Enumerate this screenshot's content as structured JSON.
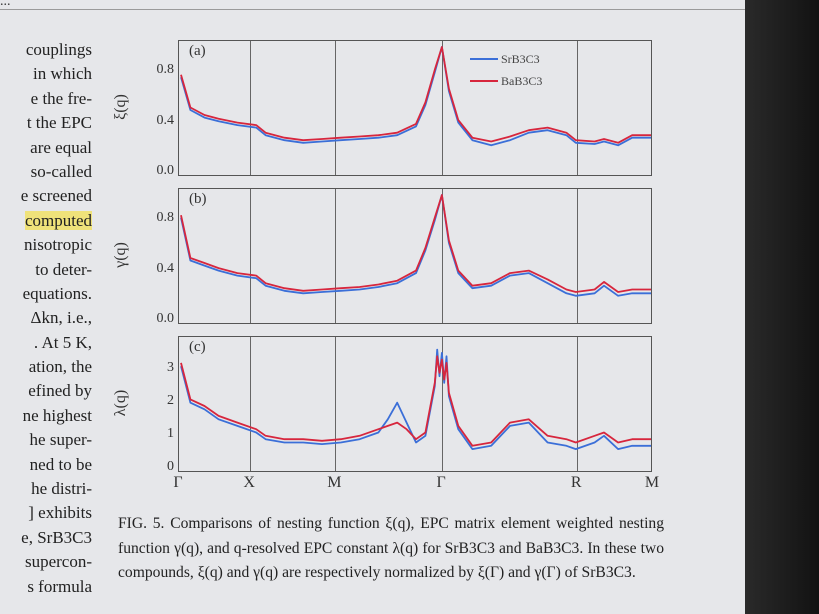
{
  "header": {
    "dots": "..."
  },
  "left_column": [
    "couplings",
    "in which",
    "e the fre-",
    "t the EPC",
    "are equal",
    "so-called",
    "e screened",
    "computed",
    "nisotropic",
    "to deter-",
    "equations.",
    "Δkn, i.e.,",
    ". At 5 K,",
    "ation, the",
    "efined by",
    "ne highest",
    "he super-",
    "ned to be",
    "he distri-",
    "] exhibits",
    "e, SrB3C3",
    "supercon-",
    "s formula"
  ],
  "highlight_index": 7,
  "legend": {
    "series1": "SrB3C3",
    "series2": "BaB3C3",
    "color1": "#3b6fd8",
    "color2": "#d7263d"
  },
  "x_ticks": [
    "Γ",
    "X",
    "M",
    "Γ",
    "R",
    "M"
  ],
  "chart_data": [
    {
      "type": "line",
      "panel_label": "(a)",
      "ylabel": "ξ(q)",
      "yticks": [
        "0.0",
        "0.4",
        "0.8"
      ],
      "ylim": [
        0,
        1.0
      ],
      "x": [
        0.0,
        0.02,
        0.05,
        0.08,
        0.12,
        0.16,
        0.18,
        0.22,
        0.26,
        0.3,
        0.34,
        0.38,
        0.42,
        0.46,
        0.5,
        0.52,
        0.54,
        0.555,
        0.57,
        0.59,
        0.62,
        0.66,
        0.7,
        0.74,
        0.78,
        0.82,
        0.84,
        0.88,
        0.9,
        0.93,
        0.96,
        1.0
      ],
      "series": [
        {
          "name": "SrB3C3",
          "values": [
            0.76,
            0.5,
            0.44,
            0.41,
            0.38,
            0.36,
            0.3,
            0.26,
            0.24,
            0.25,
            0.26,
            0.27,
            0.28,
            0.3,
            0.37,
            0.54,
            0.8,
            1.0,
            0.65,
            0.4,
            0.26,
            0.22,
            0.26,
            0.32,
            0.34,
            0.3,
            0.24,
            0.23,
            0.25,
            0.22,
            0.28,
            0.28
          ]
        },
        {
          "name": "BaB3C3",
          "values": [
            0.78,
            0.52,
            0.46,
            0.43,
            0.4,
            0.38,
            0.32,
            0.28,
            0.26,
            0.27,
            0.28,
            0.29,
            0.3,
            0.32,
            0.39,
            0.56,
            0.82,
            1.0,
            0.67,
            0.42,
            0.28,
            0.25,
            0.29,
            0.34,
            0.36,
            0.32,
            0.26,
            0.25,
            0.27,
            0.24,
            0.3,
            0.3
          ]
        }
      ]
    },
    {
      "type": "line",
      "panel_label": "(b)",
      "ylabel": "γ(q)",
      "yticks": [
        "0.0",
        "0.4",
        "0.8"
      ],
      "ylim": [
        0,
        1.0
      ],
      "x": [
        0.0,
        0.02,
        0.05,
        0.08,
        0.12,
        0.16,
        0.18,
        0.22,
        0.26,
        0.3,
        0.34,
        0.38,
        0.42,
        0.46,
        0.5,
        0.52,
        0.54,
        0.555,
        0.57,
        0.59,
        0.62,
        0.66,
        0.7,
        0.74,
        0.78,
        0.82,
        0.84,
        0.88,
        0.9,
        0.93,
        0.96,
        1.0
      ],
      "series": [
        {
          "name": "SrB3C3",
          "values": [
            0.82,
            0.48,
            0.44,
            0.4,
            0.36,
            0.34,
            0.28,
            0.24,
            0.22,
            0.23,
            0.24,
            0.25,
            0.27,
            0.3,
            0.38,
            0.56,
            0.8,
            1.0,
            0.62,
            0.38,
            0.26,
            0.28,
            0.36,
            0.38,
            0.3,
            0.22,
            0.2,
            0.22,
            0.28,
            0.2,
            0.22,
            0.22
          ]
        },
        {
          "name": "BaB3C3",
          "values": [
            0.84,
            0.5,
            0.46,
            0.42,
            0.38,
            0.36,
            0.3,
            0.26,
            0.24,
            0.25,
            0.26,
            0.27,
            0.29,
            0.32,
            0.4,
            0.58,
            0.82,
            1.0,
            0.64,
            0.4,
            0.28,
            0.3,
            0.38,
            0.4,
            0.33,
            0.25,
            0.23,
            0.25,
            0.31,
            0.23,
            0.25,
            0.25
          ]
        }
      ]
    },
    {
      "type": "line",
      "panel_label": "(c)",
      "ylabel": "λ(q)",
      "yticks": [
        "0",
        "1",
        "2",
        "3"
      ],
      "ylim": [
        0,
        3.8
      ],
      "x": [
        0.0,
        0.02,
        0.05,
        0.08,
        0.12,
        0.16,
        0.18,
        0.22,
        0.26,
        0.3,
        0.34,
        0.38,
        0.42,
        0.44,
        0.46,
        0.48,
        0.5,
        0.52,
        0.54,
        0.545,
        0.55,
        0.555,
        0.56,
        0.565,
        0.57,
        0.59,
        0.62,
        0.66,
        0.7,
        0.74,
        0.78,
        0.82,
        0.84,
        0.88,
        0.9,
        0.93,
        0.96,
        1.0
      ],
      "series": [
        {
          "name": "SrB3C3",
          "values": [
            3.1,
            2.0,
            1.8,
            1.5,
            1.3,
            1.1,
            0.9,
            0.8,
            0.8,
            0.75,
            0.8,
            0.9,
            1.1,
            1.5,
            2.0,
            1.4,
            0.8,
            1.0,
            2.5,
            3.6,
            2.8,
            3.5,
            2.6,
            3.4,
            2.2,
            1.2,
            0.6,
            0.7,
            1.3,
            1.4,
            0.8,
            0.7,
            0.6,
            0.8,
            1.0,
            0.6,
            0.7,
            0.7
          ]
        },
        {
          "name": "BaB3C3",
          "values": [
            3.2,
            2.1,
            1.9,
            1.6,
            1.4,
            1.2,
            1.0,
            0.9,
            0.9,
            0.85,
            0.9,
            1.0,
            1.2,
            1.3,
            1.4,
            1.2,
            0.9,
            1.1,
            2.6,
            3.4,
            2.9,
            3.3,
            2.7,
            3.2,
            2.3,
            1.3,
            0.7,
            0.8,
            1.4,
            1.5,
            1.0,
            0.9,
            0.8,
            1.0,
            1.1,
            0.8,
            0.9,
            0.9
          ]
        }
      ]
    }
  ],
  "caption": "FIG. 5. Comparisons of nesting function ξ(q), EPC matrix element weighted nesting function γ(q), and q-resolved EPC constant λ(q) for SrB3C3 and BaB3C3. In these two compounds, ξ(q) and γ(q) are respectively normalized by ξ(Γ) and γ(Γ) of SrB3C3."
}
